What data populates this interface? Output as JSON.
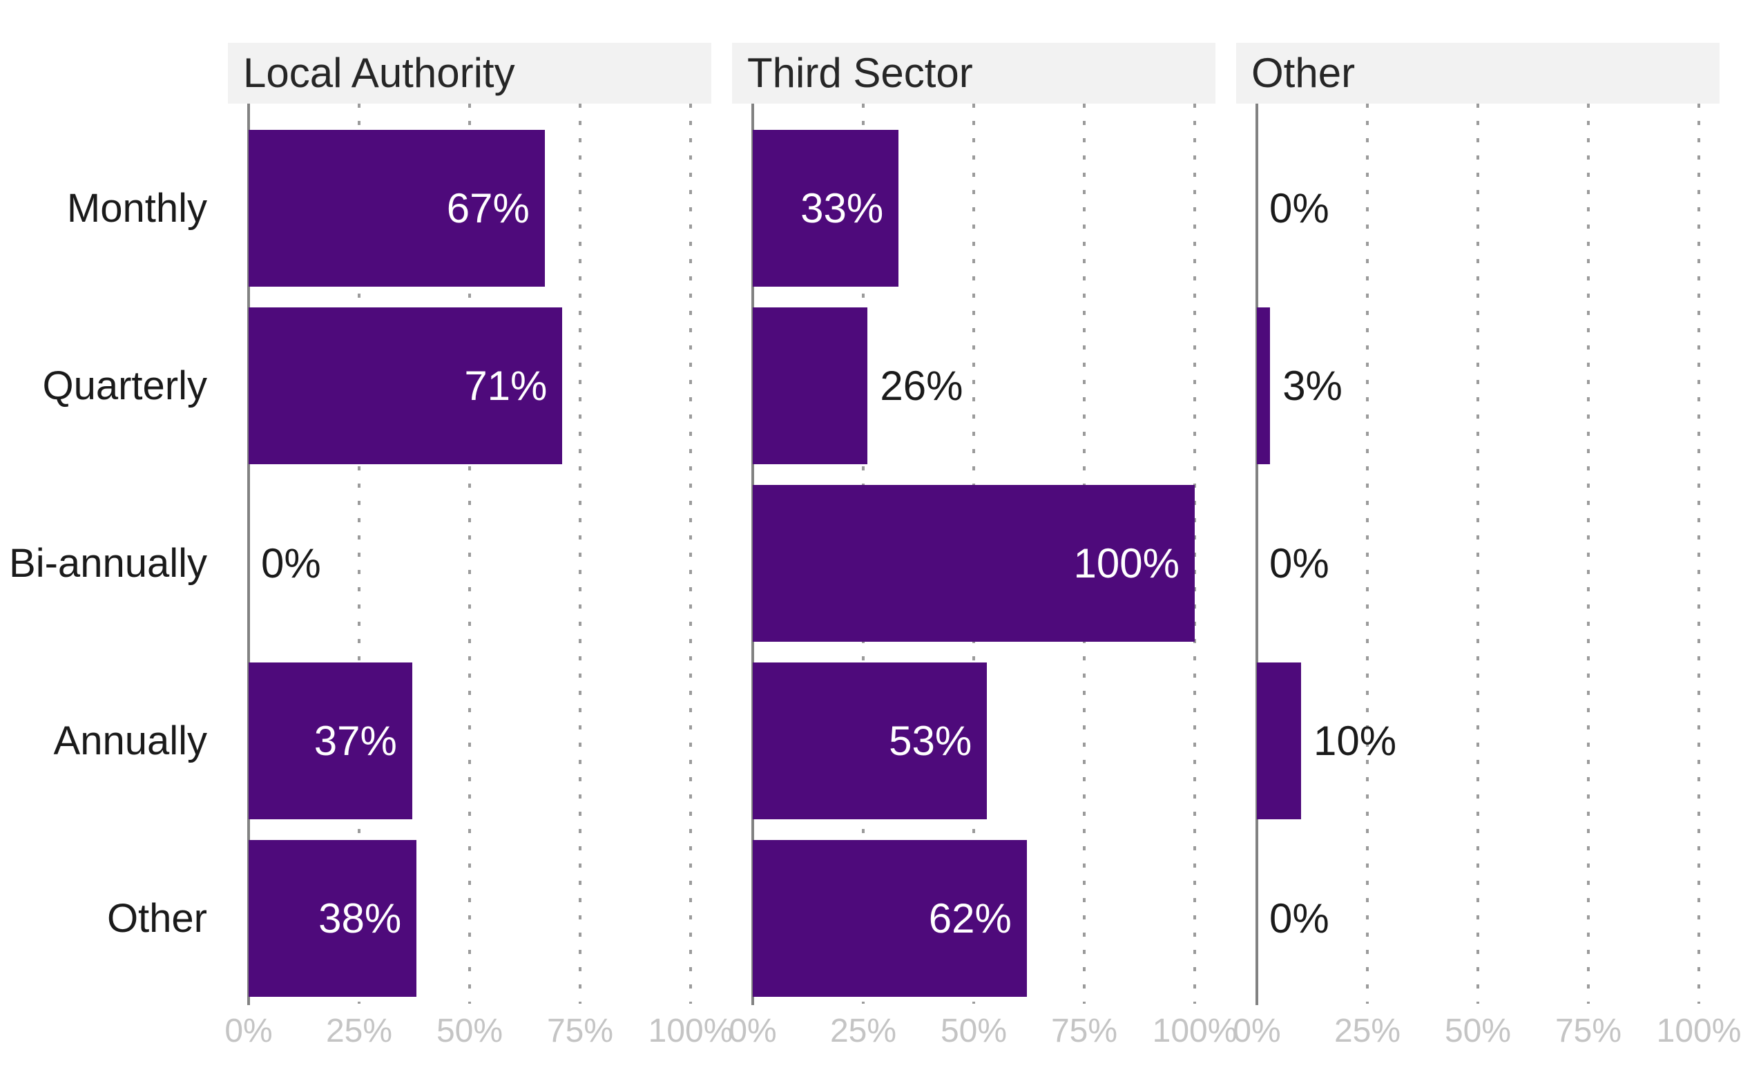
{
  "chart_data": {
    "type": "bar",
    "orientation": "horizontal",
    "title": "",
    "categories": [
      "Monthly",
      "Quarterly",
      "Bi-annually",
      "Annually",
      "Other"
    ],
    "x_ticks": [
      "0%",
      "25%",
      "50%",
      "75%",
      "100%"
    ],
    "xlim": [
      0,
      100
    ],
    "grid": "vertical-dotted",
    "legend": "none",
    "facets": [
      {
        "title": "Local Authority",
        "values": [
          67,
          71,
          0,
          37,
          38
        ],
        "labels": [
          "67%",
          "71%",
          "0%",
          "37%",
          "38%"
        ],
        "label_inside": [
          true,
          true,
          false,
          true,
          true
        ]
      },
      {
        "title": "Third Sector",
        "values": [
          33,
          26,
          100,
          53,
          62
        ],
        "labels": [
          "33%",
          "26%",
          "100%",
          "53%",
          "62%"
        ],
        "label_inside": [
          true,
          false,
          true,
          true,
          true
        ]
      },
      {
        "title": "Other",
        "values": [
          0,
          3,
          0,
          10,
          0
        ],
        "labels": [
          "0%",
          "3%",
          "0%",
          "10%",
          "0%"
        ],
        "label_inside": [
          false,
          false,
          false,
          false,
          false
        ]
      }
    ],
    "colors": {
      "bar": "#4e0a7b",
      "strip_bg": "#f2f2f2",
      "strip_text": "#262626",
      "category_text": "#1a1a1a",
      "label_inside": "#ffffff",
      "label_outside": "#1a1a1a",
      "axis_line": "#828282",
      "gridline": "#9b9b9b",
      "tick_label": "#c4c4c4"
    }
  }
}
